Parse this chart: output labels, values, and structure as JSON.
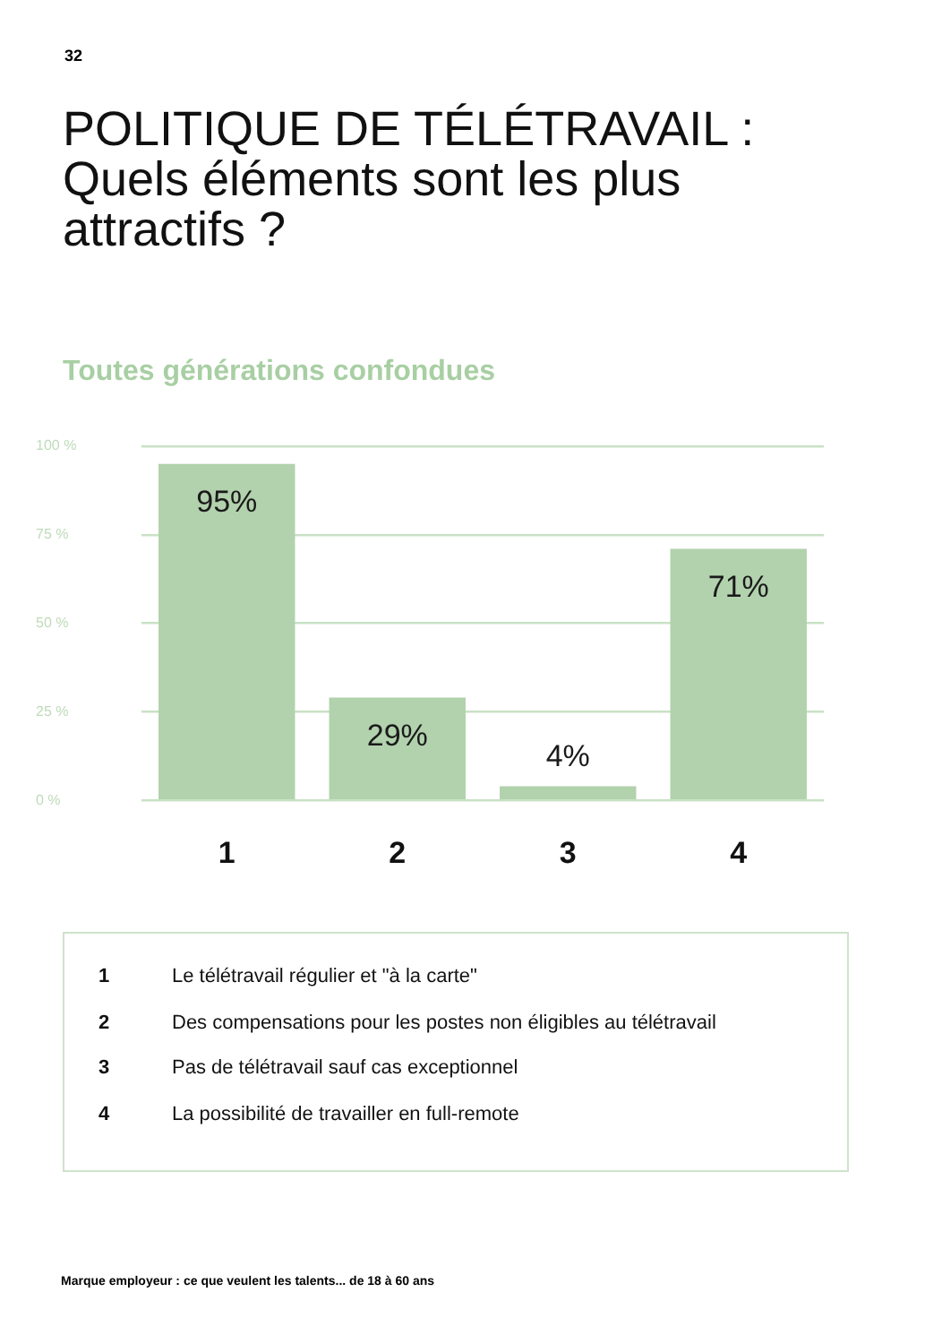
{
  "chart_data": {
    "type": "bar",
    "title": "POLITIQUE DE TÉLÉTRAVAIL :\nQuels éléments sont les plus attractifs ?",
    "subtitle": "Toutes générations confondues",
    "categories": [
      "1",
      "2",
      "3",
      "4"
    ],
    "values": [
      95,
      29,
      4,
      71
    ],
    "color": "#b2d1ad",
    "value_labels": [
      "95%",
      "29%",
      "4%",
      "71%"
    ],
    "ylim": [
      0,
      100
    ],
    "yticks": [
      {
        "value": 0,
        "label": "0 %"
      },
      {
        "value": 25,
        "label": "25 %"
      },
      {
        "value": 50,
        "label": "50 %"
      },
      {
        "value": 75,
        "label": "75 %"
      },
      {
        "value": 100,
        "label": "100 %"
      }
    ],
    "grid": "y",
    "legend": false,
    "annotations": [
      "32",
      "Le télétravail régulier et \"à la carte\"",
      "Des compensations pour les postes non éligibles au télétravail",
      "Pas de télétravail sauf cas exceptionnel",
      "La possibilité de travailler en full-remote",
      "Marque employeur : ce que veulent les talents... de 18 à 60 ans"
    ]
  }
}
